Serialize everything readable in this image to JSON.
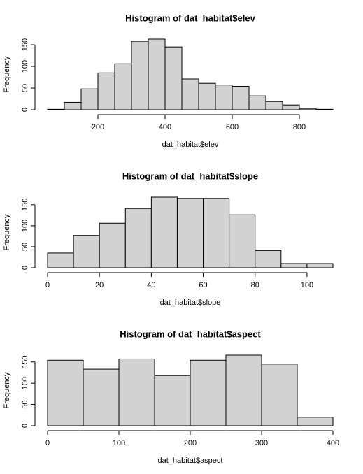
{
  "chart_data": [
    {
      "type": "histogram",
      "title": "Histogram of dat_habitat$elev",
      "x_label": "dat_habitat$elev",
      "y_label": "Frequency",
      "bins": [
        50,
        100,
        150,
        200,
        250,
        300,
        350,
        400,
        450,
        500,
        550,
        600,
        650,
        700,
        750,
        800,
        850,
        900
      ],
      "values": [
        1,
        17,
        48,
        85,
        106,
        158,
        163,
        145,
        71,
        61,
        57,
        54,
        32,
        19,
        11,
        3,
        1
      ],
      "color": "#d3d3d3",
      "xlim": [
        50,
        900
      ],
      "ylim": [
        0,
        163
      ],
      "xticks": [
        200,
        400,
        600,
        800
      ],
      "yticks": [
        0,
        50,
        100,
        150
      ]
    },
    {
      "type": "histogram",
      "title": "Histogram of dat_habitat$slope",
      "x_label": "dat_habitat$slope",
      "y_label": "Frequency",
      "bins": [
        0,
        10,
        20,
        30,
        40,
        50,
        60,
        70,
        80,
        90,
        100,
        110
      ],
      "values": [
        35,
        77,
        106,
        141,
        168,
        165,
        165,
        126,
        41,
        10,
        10
      ],
      "color": "#d3d3d3",
      "xlim": [
        0,
        110
      ],
      "ylim": [
        0,
        168
      ],
      "xticks": [
        0,
        20,
        40,
        60,
        80,
        100
      ],
      "yticks": [
        0,
        50,
        100,
        150
      ]
    },
    {
      "type": "histogram",
      "title": "Histogram of dat_habitat$aspect",
      "x_label": "dat_habitat$aspect",
      "y_label": "Frequency",
      "bins": [
        0,
        50,
        100,
        150,
        200,
        250,
        300,
        350,
        400
      ],
      "values": [
        154,
        133,
        157,
        118,
        154,
        166,
        145,
        20
      ],
      "color": "#d3d3d3",
      "xlim": [
        0,
        400
      ],
      "ylim": [
        0,
        166
      ],
      "xticks": [
        0,
        100,
        200,
        300,
        400
      ],
      "yticks": [
        0,
        50,
        100,
        150
      ]
    }
  ]
}
